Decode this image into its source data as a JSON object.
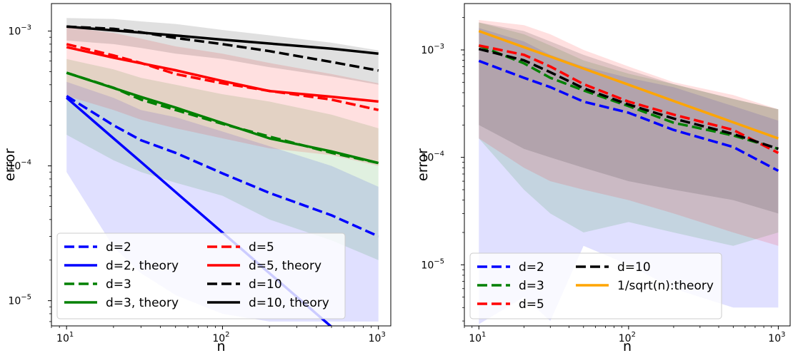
{
  "chart_data": [
    {
      "type": "line",
      "xlabel": "n",
      "ylabel": "error",
      "xscale": "log",
      "yscale": "log",
      "xlim": [
        8,
        1200
      ],
      "ylim": [
        6.5e-06,
        0.0016
      ],
      "grid": false,
      "legend": {
        "placement": "lower-left",
        "columns": 2
      },
      "xticks": [
        {
          "base": "10",
          "exp": "1"
        },
        {
          "base": "10",
          "exp": "2"
        },
        {
          "base": "10",
          "exp": "3"
        }
      ],
      "yticks": [
        {
          "base": "10",
          "exp": "−5"
        },
        {
          "base": "10",
          "exp": "−4"
        },
        {
          "base": "10",
          "exp": "−3"
        }
      ],
      "x": [
        10,
        20,
        30,
        50,
        100,
        200,
        500,
        1000
      ],
      "series": [
        {
          "name": "d=2",
          "style": "dashed",
          "color": "#0000ff",
          "band": true,
          "values": [
            0.00033,
            0.0002,
            0.000155,
            0.000125,
            8.8e-05,
            6.3e-05,
            4.3e-05,
            3e-05
          ],
          "band_low": [
            9e-05,
            2.5e-05,
            1.6e-05,
            1.1e-05,
            8e-06,
            7e-06,
            7e-06,
            7e-06
          ],
          "band_high": [
            0.00042,
            0.00032,
            0.00026,
            0.00023,
            0.00018,
            0.00014,
            0.0001,
            7e-05
          ]
        },
        {
          "name": "d=2, theory",
          "style": "solid",
          "color": "#0000ff",
          "values": [
            0.00032,
            0.00016,
            0.000107,
            6.4e-05,
            3.2e-05,
            1.6e-05,
            6.4e-06,
            3.2e-06
          ]
        },
        {
          "name": "d=3",
          "style": "dashed",
          "color": "#008000",
          "band": true,
          "values": [
            0.00049,
            0.00038,
            0.00031,
            0.00026,
            0.000205,
            0.000165,
            0.000125,
            0.000105
          ],
          "band_low": [
            0.00017,
            0.00011,
            9e-05,
            7.5e-05,
            6e-05,
            4e-05,
            2.8e-05,
            2e-05
          ],
          "band_high": [
            0.00062,
            0.00052,
            0.00045,
            0.0004,
            0.00034,
            0.0003,
            0.00024,
            0.00019
          ]
        },
        {
          "name": "d=3, theory",
          "style": "solid",
          "color": "#008000",
          "values": [
            0.00049,
            0.000378,
            0.000325,
            0.000271,
            0.000208,
            0.00016,
            0.000128,
            0.000105
          ]
        },
        {
          "name": "d=5",
          "style": "dashed",
          "color": "#ff0000",
          "band": true,
          "values": [
            0.0008,
            0.00066,
            0.00058,
            0.00048,
            0.00041,
            0.00036,
            0.00031,
            0.00026
          ],
          "band_low": [
            0.00033,
            0.00026,
            0.00022,
            0.00019,
            0.00016,
            0.000135,
            0.00012,
            0.0001
          ],
          "band_high": [
            0.00107,
            0.00097,
            0.00088,
            0.00077,
            0.00068,
            0.00058,
            0.00048,
            0.00041
          ]
        },
        {
          "name": "d=5, theory",
          "style": "solid",
          "color": "#ff0000",
          "values": [
            0.00076,
            0.000635,
            0.000577,
            0.000512,
            0.000426,
            0.000359,
            0.000326,
            0.0003
          ]
        },
        {
          "name": "d=10",
          "style": "dashed",
          "color": "#000000",
          "band": true,
          "values": [
            0.00108,
            0.00104,
            0.00098,
            0.00089,
            0.0008,
            0.00071,
            0.00059,
            0.00051
          ],
          "band_low": [
            0.00085,
            0.0008,
            0.00075,
            0.00068,
            0.00062,
            0.00054,
            0.00046,
            0.0004
          ],
          "band_high": [
            0.00125,
            0.00123,
            0.00118,
            0.00113,
            0.00102,
            0.00093,
            0.00082,
            0.00072
          ]
        },
        {
          "name": "d=10, theory",
          "style": "solid",
          "color": "#000000",
          "values": [
            0.00108,
            0.001012,
            0.000974,
            0.000928,
            0.000864,
            0.000809,
            0.000741,
            0.00068
          ]
        }
      ]
    },
    {
      "type": "line",
      "xlabel": "n",
      "ylabel": "error",
      "xscale": "log",
      "yscale": "log",
      "xlim": [
        8,
        1200
      ],
      "ylim": [
        2.7e-06,
        0.0027
      ],
      "grid": false,
      "legend": {
        "placement": "lower-left",
        "columns": 2
      },
      "xticks": [
        {
          "base": "10",
          "exp": "1"
        },
        {
          "base": "10",
          "exp": "2"
        },
        {
          "base": "10",
          "exp": "3"
        }
      ],
      "yticks": [
        {
          "base": "10",
          "exp": "−5"
        },
        {
          "base": "10",
          "exp": "−4"
        },
        {
          "base": "10",
          "exp": "−3"
        }
      ],
      "x": [
        10,
        20,
        30,
        50,
        100,
        200,
        500,
        1000
      ],
      "series": [
        {
          "name": "d=2",
          "style": "dashed",
          "color": "#0000ff",
          "band": true,
          "values": [
            0.00079,
            0.00055,
            0.00045,
            0.00033,
            0.00026,
            0.00018,
            0.000125,
            7.5e-05
          ],
          "band_low": [
            2.8e-06,
            5e-06,
            3e-06,
            1.5e-05,
            1e-05,
            6e-06,
            4e-06,
            4e-06
          ],
          "band_high": [
            0.0016,
            0.0012,
            0.0009,
            0.0007,
            0.00055,
            0.00045,
            0.0003,
            0.00022
          ]
        },
        {
          "name": "d=3",
          "style": "dashed",
          "color": "#008000",
          "band": true,
          "values": [
            0.0011,
            0.00075,
            0.00055,
            0.00042,
            0.0003,
            0.00021,
            0.00016,
            0.00012
          ],
          "band_low": [
            0.00015,
            5e-05,
            3e-05,
            2e-05,
            2.5e-05,
            2e-05,
            1.5e-05,
            2e-05
          ],
          "band_high": [
            0.0018,
            0.0014,
            0.0011,
            0.0008,
            0.0006,
            0.00048,
            0.00035,
            0.00028
          ]
        },
        {
          "name": "d=5",
          "style": "dashed",
          "color": "#ff0000",
          "band": true,
          "values": [
            0.0011,
            0.0009,
            0.0007,
            0.00048,
            0.00033,
            0.00025,
            0.00018,
            0.00011
          ],
          "band_low": [
            0.00015,
            8e-05,
            6e-05,
            5e-05,
            4e-05,
            3e-05,
            2e-05,
            1.5e-05
          ],
          "band_high": [
            0.0019,
            0.0017,
            0.0014,
            0.001,
            0.0007,
            0.0005,
            0.00038,
            0.00028
          ]
        },
        {
          "name": "d=10",
          "style": "dashed",
          "color": "#000000",
          "band": true,
          "values": [
            0.00102,
            0.0008,
            0.00062,
            0.00044,
            0.00031,
            0.00023,
            0.000165,
            0.00012
          ],
          "band_low": [
            0.0002,
            0.00012,
            0.0001,
            8e-05,
            6e-05,
            5e-05,
            4e-05,
            3e-05
          ],
          "band_high": [
            0.0018,
            0.0015,
            0.0012,
            0.0009,
            0.00065,
            0.00048,
            0.00035,
            0.00028
          ]
        },
        {
          "name": "1/sqrt(n):theory",
          "style": "solid",
          "color": "#ffa500",
          "values": [
            0.0015,
            0.00106,
            0.000866,
            0.000671,
            0.000474,
            0.000335,
            0.000212,
            0.00015
          ]
        }
      ]
    }
  ]
}
